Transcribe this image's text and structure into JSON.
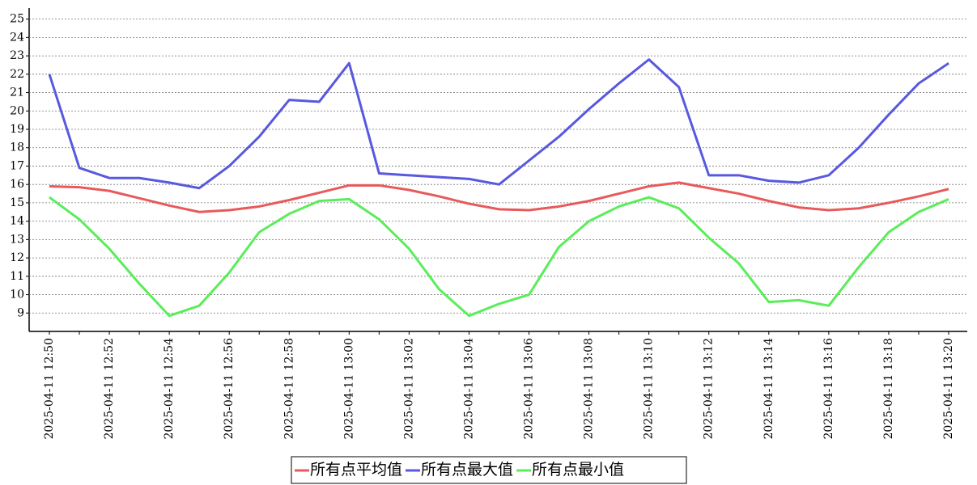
{
  "chart_data": {
    "type": "line",
    "categories": [
      "2025-04-11 12:50",
      null,
      "2025-04-11 12:52",
      null,
      "2025-04-11 12:54",
      null,
      "2025-04-11 12:56",
      null,
      "2025-04-11 12:58",
      null,
      "2025-04-11 13:00",
      null,
      "2025-04-11 13:02",
      null,
      "2025-04-11 13:04",
      null,
      "2025-04-11 13:06",
      null,
      "2025-04-11 13:08",
      null,
      "2025-04-11 13:10",
      null,
      "2025-04-11 13:12",
      null,
      "2025-04-11 13:14",
      null,
      "2025-04-11 13:16",
      null,
      "2025-04-11 13:18",
      null,
      "2025-04-11 13:20"
    ],
    "series": [
      {
        "name": "所有点平均值",
        "color": "#e85a5a",
        "values": [
          15.9,
          15.85,
          15.65,
          15.25,
          14.85,
          14.5,
          14.6,
          14.8,
          15.15,
          15.55,
          15.95,
          15.95,
          15.7,
          15.35,
          14.95,
          14.65,
          14.6,
          14.8,
          15.1,
          15.5,
          15.9,
          16.1,
          15.8,
          15.5,
          15.1,
          14.75,
          14.6,
          14.7,
          15.0,
          15.35,
          15.75
        ]
      },
      {
        "name": "所有点最大值",
        "color": "#5858e0",
        "values": [
          22.0,
          16.9,
          16.35,
          16.35,
          16.1,
          15.8,
          17.0,
          18.6,
          20.6,
          20.5,
          22.6,
          16.6,
          16.5,
          16.4,
          16.3,
          16.0,
          17.3,
          18.6,
          20.1,
          21.5,
          22.8,
          21.3,
          16.5,
          16.5,
          16.2,
          16.1,
          16.5,
          18.0,
          19.8,
          21.5,
          22.6
        ]
      },
      {
        "name": "所有点最小值",
        "color": "#5aed5a",
        "values": [
          15.3,
          14.1,
          12.5,
          10.6,
          8.85,
          9.4,
          11.2,
          13.4,
          14.4,
          15.1,
          15.2,
          14.1,
          12.5,
          10.3,
          8.85,
          9.5,
          10.0,
          12.6,
          14.0,
          14.8,
          15.3,
          14.7,
          13.1,
          11.7,
          9.6,
          9.7,
          9.4,
          11.5,
          13.4,
          14.5,
          15.2
        ]
      }
    ],
    "ylim": [
      8,
      25.6
    ],
    "yticks": [
      9,
      10,
      11,
      12,
      13,
      14,
      15,
      16,
      17,
      18,
      19,
      20,
      21,
      22,
      23,
      24,
      25
    ],
    "grid": true,
    "legend": "bottom"
  }
}
